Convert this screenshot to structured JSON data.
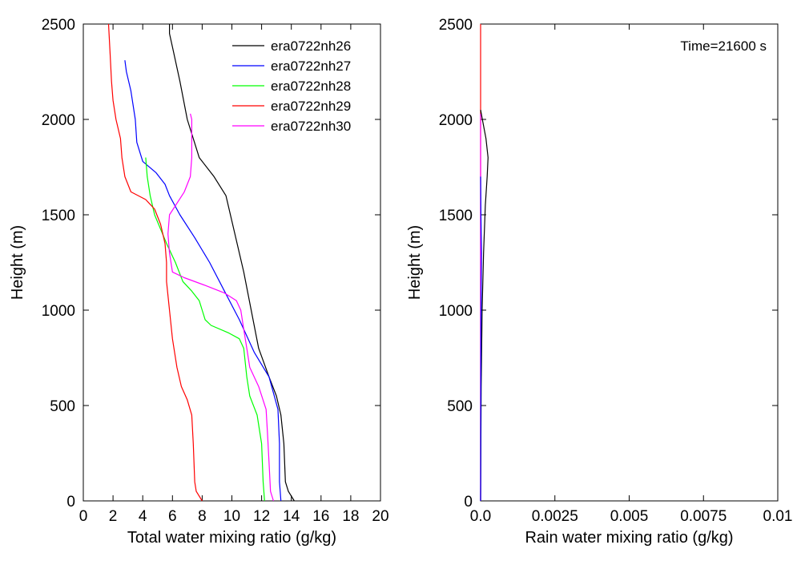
{
  "chart_data": [
    {
      "type": "line",
      "xlabel": "Total water mixing ratio (g/kg)",
      "ylabel": "Height (m)",
      "xlim": [
        0,
        20
      ],
      "ylim": [
        0,
        2500
      ],
      "xticks": [
        "0",
        "2",
        "4",
        "6",
        "8",
        "10",
        "12",
        "14",
        "16",
        "18",
        "20"
      ],
      "yticks": [
        "0",
        "500",
        "1000",
        "1500",
        "2000",
        "2500"
      ],
      "grid": false,
      "legend_position": "top-right",
      "series": [
        {
          "name": "era0722nh26",
          "color": "#000000",
          "points": [
            [
              14.2,
              0
            ],
            [
              13.8,
              50
            ],
            [
              13.6,
              100
            ],
            [
              13.5,
              300
            ],
            [
              13.3,
              450
            ],
            [
              13.0,
              550
            ],
            [
              12.5,
              650
            ],
            [
              11.8,
              800
            ],
            [
              11.3,
              1000
            ],
            [
              10.8,
              1200
            ],
            [
              10.2,
              1400
            ],
            [
              9.6,
              1600
            ],
            [
              8.8,
              1700
            ],
            [
              7.8,
              1800
            ],
            [
              7.0,
              2000
            ],
            [
              6.5,
              2200
            ],
            [
              6.0,
              2380
            ],
            [
              5.8,
              2450
            ],
            [
              5.8,
              2500
            ]
          ]
        },
        {
          "name": "era0722nh27",
          "color": "#0000ff",
          "points": [
            [
              13.3,
              0
            ],
            [
              13.2,
              100
            ],
            [
              13.2,
              300
            ],
            [
              13.1,
              480
            ],
            [
              12.5,
              650
            ],
            [
              11.5,
              780
            ],
            [
              10.5,
              950
            ],
            [
              9.5,
              1100
            ],
            [
              8.5,
              1250
            ],
            [
              7.5,
              1380
            ],
            [
              6.5,
              1500
            ],
            [
              5.8,
              1600
            ],
            [
              5.5,
              1660
            ],
            [
              4.9,
              1720
            ],
            [
              4.0,
              1780
            ],
            [
              3.6,
              1880
            ],
            [
              3.5,
              2000
            ],
            [
              3.2,
              2150
            ],
            [
              2.9,
              2250
            ],
            [
              2.8,
              2310
            ]
          ]
        },
        {
          "name": "era0722nh28",
          "color": "#00ff00",
          "points": [
            [
              12.2,
              0
            ],
            [
              12.1,
              100
            ],
            [
              12.0,
              300
            ],
            [
              11.7,
              450
            ],
            [
              11.2,
              550
            ],
            [
              11.0,
              650
            ],
            [
              10.8,
              800
            ],
            [
              10.5,
              850
            ],
            [
              9.8,
              880
            ],
            [
              8.6,
              920
            ],
            [
              8.2,
              950
            ],
            [
              8.0,
              1000
            ],
            [
              7.8,
              1050
            ],
            [
              7.3,
              1100
            ],
            [
              6.7,
              1150
            ],
            [
              6.2,
              1250
            ],
            [
              5.6,
              1350
            ],
            [
              4.8,
              1500
            ],
            [
              4.5,
              1600
            ],
            [
              4.3,
              1700
            ],
            [
              4.2,
              1800
            ]
          ]
        },
        {
          "name": "era0722nh29",
          "color": "#ff0000",
          "points": [
            [
              8.0,
              0
            ],
            [
              7.6,
              50
            ],
            [
              7.5,
              100
            ],
            [
              7.4,
              300
            ],
            [
              7.3,
              450
            ],
            [
              7.0,
              530
            ],
            [
              6.6,
              600
            ],
            [
              6.3,
              700
            ],
            [
              6.0,
              850
            ],
            [
              5.8,
              1000
            ],
            [
              5.6,
              1150
            ],
            [
              5.6,
              1250
            ],
            [
              5.5,
              1350
            ],
            [
              5.2,
              1450
            ],
            [
              4.8,
              1530
            ],
            [
              4.2,
              1580
            ],
            [
              3.2,
              1620
            ],
            [
              2.8,
              1700
            ],
            [
              2.6,
              1800
            ],
            [
              2.5,
              1900
            ],
            [
              2.2,
              2000
            ],
            [
              2.0,
              2100
            ],
            [
              1.9,
              2200
            ],
            [
              1.8,
              2350
            ],
            [
              1.7,
              2500
            ]
          ]
        },
        {
          "name": "era0722nh30",
          "color": "#ff00ff",
          "points": [
            [
              12.8,
              0
            ],
            [
              12.6,
              50
            ],
            [
              12.5,
              200
            ],
            [
              12.4,
              350
            ],
            [
              12.3,
              480
            ],
            [
              11.8,
              600
            ],
            [
              11.2,
              700
            ],
            [
              11.0,
              800
            ],
            [
              10.8,
              900
            ],
            [
              10.6,
              1000
            ],
            [
              10.3,
              1050
            ],
            [
              9.5,
              1090
            ],
            [
              8.2,
              1130
            ],
            [
              6.8,
              1170
            ],
            [
              6.0,
              1200
            ],
            [
              5.8,
              1300
            ],
            [
              5.7,
              1400
            ],
            [
              5.8,
              1500
            ],
            [
              6.3,
              1560
            ],
            [
              6.8,
              1620
            ],
            [
              7.2,
              1700
            ],
            [
              7.3,
              1800
            ],
            [
              7.3,
              2000
            ],
            [
              7.2,
              2030
            ]
          ]
        }
      ]
    },
    {
      "type": "line",
      "xlabel": "Rain water mixing ratio (g/kg)",
      "ylabel": "Height (m)",
      "xlim": [
        0,
        0.01
      ],
      "ylim": [
        0,
        2500
      ],
      "xticks": [
        "0.0",
        "0.0025",
        "0.005",
        "0.0075",
        "0.01"
      ],
      "yticks": [
        "0",
        "500",
        "1000",
        "1500",
        "2000",
        "2500"
      ],
      "grid": false,
      "annotation": "Time=21600 s",
      "series": [
        {
          "color": "#ff0000",
          "points": [
            [
              0.0,
              0
            ],
            [
              0.0,
              2500
            ]
          ]
        },
        {
          "color": "#ff00ff",
          "points": [
            [
              0.0,
              0
            ],
            [
              0.0,
              2030
            ]
          ]
        },
        {
          "color": "#000000",
          "points": [
            [
              0.0,
              0
            ],
            [
              2e-05,
              600
            ],
            [
              5e-05,
              1000
            ],
            [
              0.0001,
              1300
            ],
            [
              0.00016,
              1550
            ],
            [
              0.00022,
              1700
            ],
            [
              0.00025,
              1800
            ],
            [
              0.00018,
              1900
            ],
            [
              6e-05,
              2000
            ],
            [
              0.0,
              2050
            ]
          ]
        },
        {
          "color": "#0000ff",
          "points": [
            [
              0.0,
              0
            ],
            [
              1e-05,
              900
            ],
            [
              3e-05,
              1300
            ],
            [
              1e-05,
              1500
            ],
            [
              0.0,
              1700
            ]
          ]
        }
      ]
    }
  ]
}
